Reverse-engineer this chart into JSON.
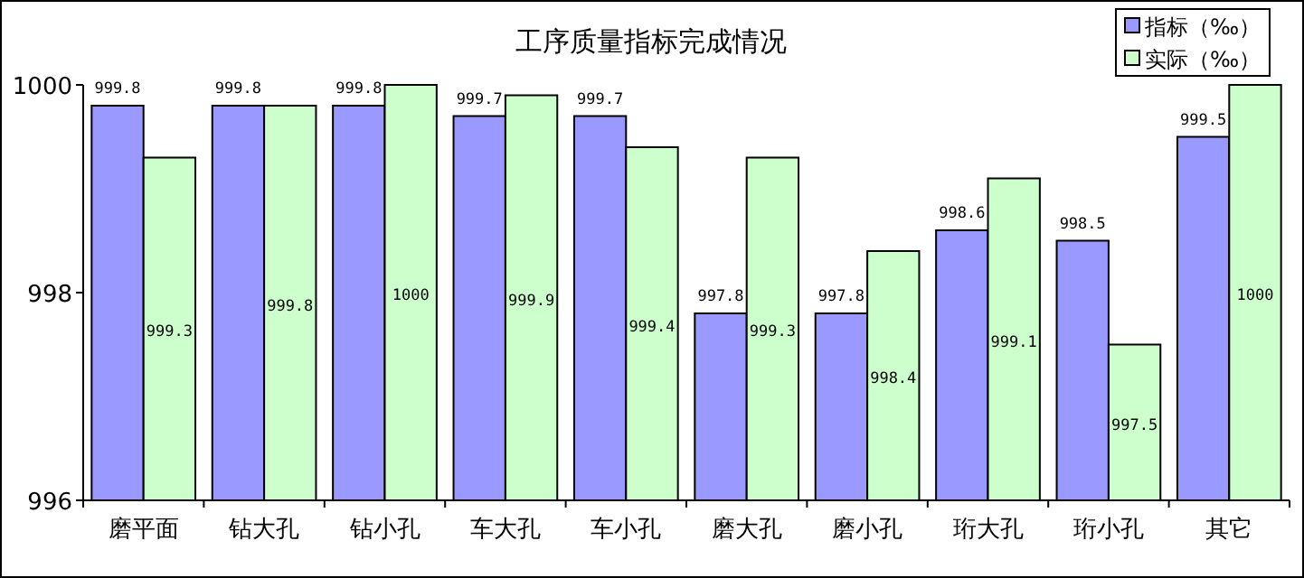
{
  "chart_data": {
    "type": "bar",
    "title": "工序质量指标完成情况",
    "categories": [
      "磨平面",
      "钻大孔",
      "钻小孔",
      "车大孔",
      "车小孔",
      "磨大孔",
      "磨小孔",
      "珩大孔",
      "珩小孔",
      "其它"
    ],
    "series": [
      {
        "name": "指标（‰）",
        "color": "#9999ff",
        "values": [
          999.8,
          999.8,
          999.8,
          999.7,
          999.7,
          997.8,
          997.8,
          998.6,
          998.5,
          999.5
        ]
      },
      {
        "name": "实际（‰）",
        "color": "#ccffcc",
        "values": [
          999.3,
          999.8,
          1000,
          999.9,
          999.4,
          999.3,
          998.4,
          999.1,
          997.5,
          1000
        ]
      }
    ],
    "ylim": [
      996,
      1000
    ],
    "yticks": [
      996,
      998,
      1000
    ],
    "data_labels": true,
    "legend": "top right",
    "grid": false
  }
}
